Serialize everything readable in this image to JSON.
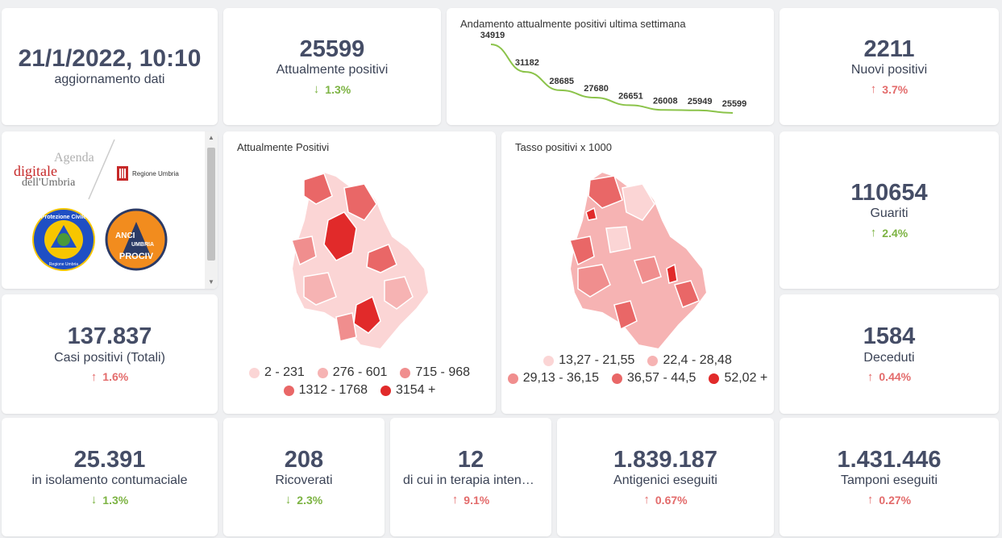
{
  "update": {
    "datetime": "21/1/2022, 10:10",
    "label": "aggiornamento dati"
  },
  "kpis": {
    "attualmente_positivi": {
      "value": "25599",
      "label": "Attualmente positivi",
      "change": "1.3%",
      "direction": "down"
    },
    "nuovi_positivi": {
      "value": "2211",
      "label": "Nuovi positivi",
      "change": "3.7%",
      "direction": "up"
    },
    "guariti": {
      "value": "110654",
      "label": "Guariti",
      "change": "2.4%",
      "direction": "up"
    },
    "casi_totali": {
      "value": "137.837",
      "label": "Casi positivi (Totali)",
      "change": "1.6%",
      "direction": "up"
    },
    "deceduti": {
      "value": "1584",
      "label": "Deceduti",
      "change": "0.44%",
      "direction": "up"
    },
    "isolamento": {
      "value": "25.391",
      "label": "in isolamento contumaciale",
      "change": "1.3%",
      "direction": "down"
    },
    "ricoverati": {
      "value": "208",
      "label": "Ricoverati",
      "change": "2.3%",
      "direction": "down"
    },
    "terapia_intensiva": {
      "value": "12",
      "label": "di cui in terapia intensiva",
      "change": "9.1%",
      "direction": "up"
    },
    "antigenici": {
      "value": "1.839.187",
      "label": "Antigenici eseguiti",
      "change": "0.67%",
      "direction": "up"
    },
    "tamponi": {
      "value": "1.431.446",
      "label": "Tamponi eseguiti",
      "change": "0.27%",
      "direction": "up"
    }
  },
  "colors": {
    "up": "#e36b6b",
    "down": "#7cb342",
    "line": "#8bc34a",
    "map_scale": [
      "#fbd5d5",
      "#f6b3b3",
      "#f08e8e",
      "#e96767",
      "#e12a2a"
    ]
  },
  "logos": {
    "agenda": {
      "line1": "Agenda",
      "line2": "digitale",
      "line3": "dell'Umbria"
    },
    "regione": "Regione Umbria",
    "protezione": {
      "top": "Protezione Civile",
      "bottom": "Regione Umbria"
    },
    "anci": {
      "line1": "ANCI",
      "line2": "UMBRIA",
      "line3": "PROCIV"
    }
  },
  "maps": {
    "positivi": {
      "title": "Attualmente Positivi",
      "legend": [
        "2 - 231",
        "276 - 601",
        "715 - 968",
        "1312 - 1768",
        "3154 +"
      ]
    },
    "tasso": {
      "title": "Tasso positivi x 1000",
      "legend": [
        "13,27 - 21,55",
        "22,4 - 28,48",
        "29,13 - 36,15",
        "36,57 - 44,5",
        "52,02 +"
      ]
    }
  },
  "chart_data": {
    "type": "line",
    "title": "Andamento attualmente positivi ultima settimana",
    "x": [
      1,
      2,
      3,
      4,
      5,
      6,
      7,
      8
    ],
    "values": [
      34919,
      31182,
      28685,
      27680,
      26651,
      26008,
      25949,
      25599
    ],
    "labels": [
      "34919",
      "31182",
      "28685",
      "27680",
      "26651",
      "26008",
      "25949",
      "25599"
    ],
    "ylim": [
      25599,
      34919
    ],
    "grid": false
  },
  "scroll": {
    "up": "▲",
    "down": "▼"
  },
  "arrows": {
    "up": "↑",
    "down": "↓"
  }
}
